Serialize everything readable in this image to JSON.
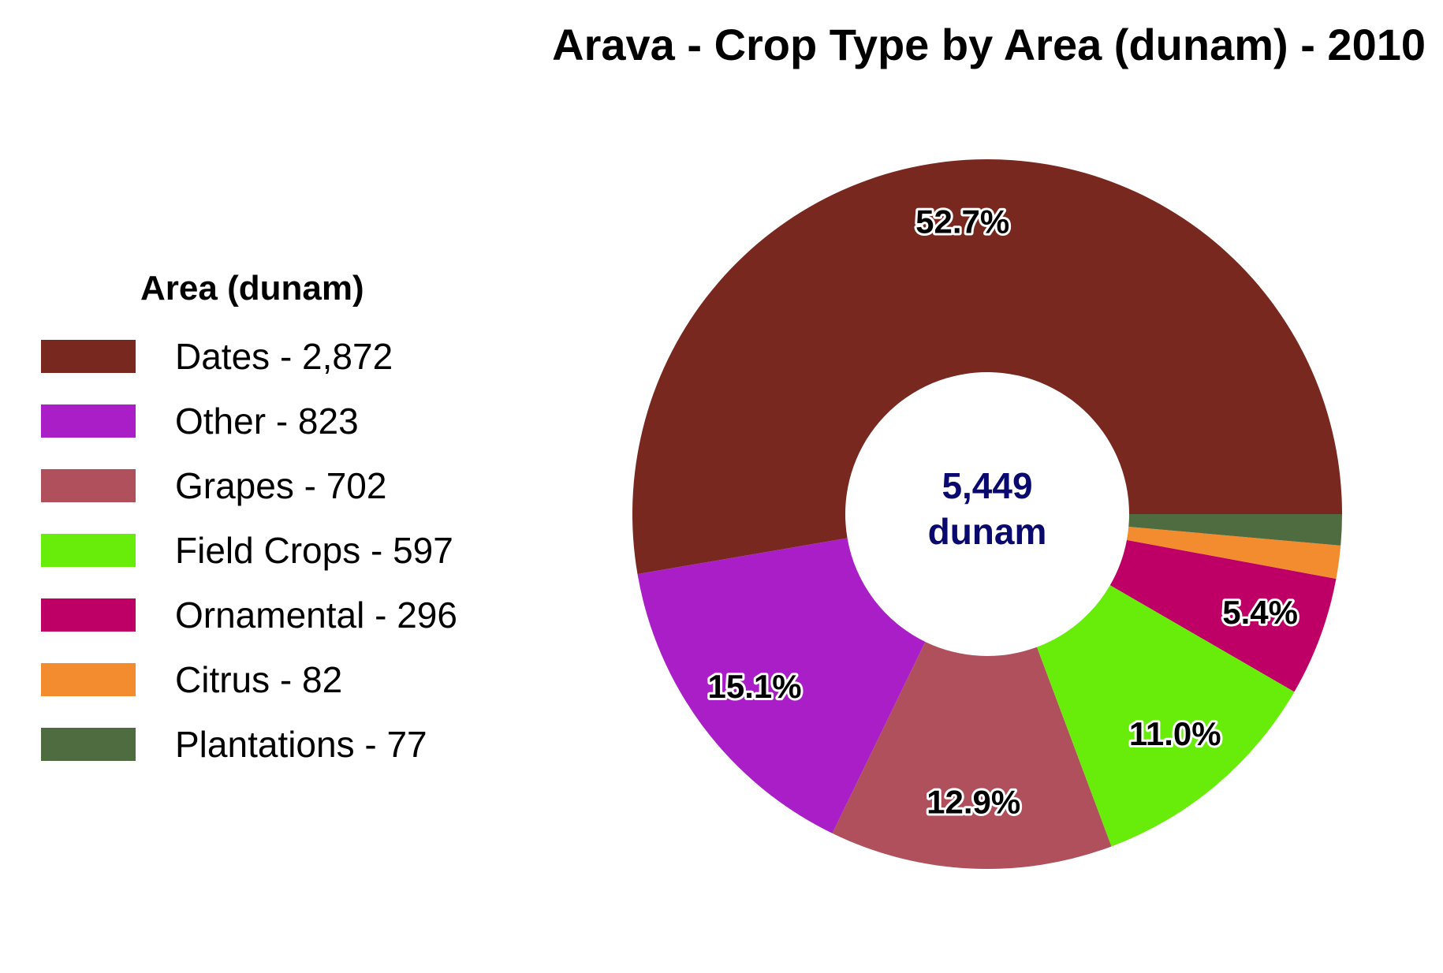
{
  "chart_data": {
    "type": "pie",
    "title": "Arava - Crop Type by Area (dunam) - 2010",
    "legend_title": "Area (dunam)",
    "legend_position": "left",
    "center_label": {
      "value": "5,449",
      "unit": "dunam"
    },
    "slices": [
      {
        "name": "Dates",
        "value": 2872,
        "legend_label": "Dates - 2,872",
        "percent_label": "52.7%",
        "color": "#78281F"
      },
      {
        "name": "Other",
        "value": 823,
        "legend_label": "Other - 823",
        "percent_label": "15.1%",
        "color": "#AA1EC8"
      },
      {
        "name": "Grapes",
        "value": 702,
        "legend_label": "Grapes - 702",
        "percent_label": "12.9%",
        "color": "#B0505C"
      },
      {
        "name": "Field Crops",
        "value": 597,
        "legend_label": "Field Crops - 597",
        "percent_label": "11.0%",
        "color": "#68EC0A"
      },
      {
        "name": "Ornamental",
        "value": 296,
        "legend_label": "Ornamental - 296",
        "percent_label": "5.4%",
        "color": "#BE0066"
      },
      {
        "name": "Citrus",
        "value": 82,
        "legend_label": "Citrus - 82",
        "percent_label": "",
        "color": "#F28C2E"
      },
      {
        "name": "Plantations",
        "value": 77,
        "legend_label": "Plantations - 77",
        "percent_label": "",
        "color": "#4F6B40"
      }
    ],
    "colors": {
      "center_text": "#0A0A6E"
    }
  }
}
